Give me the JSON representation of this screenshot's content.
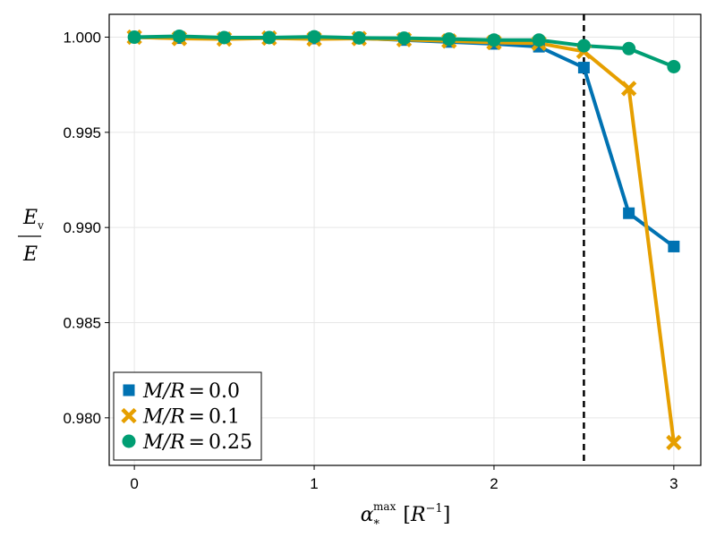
{
  "chart_data": {
    "type": "line",
    "xlabel": {
      "base": "α",
      "sup": "max",
      "sub": "*",
      "unit_open": "[",
      "unit_var": "R",
      "unit_exp": "−1",
      "unit_close": "]"
    },
    "ylabel": {
      "numerator": "E",
      "numerator_sub": "v",
      "denominator": "E"
    },
    "xlim": [
      -0.14,
      3.15
    ],
    "ylim": [
      0.9775,
      1.0012
    ],
    "x_ticks": [
      0,
      1,
      2,
      3
    ],
    "x_tick_labels": [
      "0",
      "1",
      "2",
      "3"
    ],
    "y_ticks": [
      0.98,
      0.985,
      0.99,
      0.995,
      1.0
    ],
    "y_tick_labels": [
      "0.980",
      "0.985",
      "0.990",
      "0.995",
      "1.000"
    ],
    "grid": true,
    "vline": {
      "x": 2.5,
      "style": "dashed",
      "color": "#000000"
    },
    "legend_position": "bottom-left",
    "x": [
      0,
      0.25,
      0.5,
      0.75,
      1.0,
      1.25,
      1.5,
      1.75,
      2.0,
      2.25,
      2.5,
      2.75,
      3.0
    ],
    "series": [
      {
        "name": "M/R = 0.0",
        "legend_var": "M/R",
        "legend_eq": "=",
        "legend_val": "0.0",
        "marker": "square",
        "color": "#0072b2",
        "values": [
          1.0,
          0.99995,
          0.99995,
          0.99997,
          0.99993,
          0.99995,
          0.99985,
          0.99975,
          0.99965,
          0.9995,
          0.9984,
          0.99075,
          0.989
        ]
      },
      {
        "name": "M/R = 0.1",
        "legend_var": "M/R",
        "legend_eq": "=",
        "legend_val": "0.1",
        "marker": "cross",
        "color": "#e69f00",
        "values": [
          1.0,
          0.99993,
          0.9999,
          0.99995,
          0.9999,
          0.99993,
          0.99987,
          0.9998,
          0.99972,
          0.99968,
          0.99925,
          0.9973,
          0.9787
        ]
      },
      {
        "name": "M/R = 0.25",
        "legend_var": "M/R",
        "legend_eq": "=",
        "legend_val": "0.25",
        "marker": "circle",
        "color": "#009e73",
        "values": [
          1.0,
          1.00005,
          0.99998,
          0.99998,
          1.00002,
          0.99996,
          0.99995,
          0.9999,
          0.99985,
          0.99985,
          0.99955,
          0.9994,
          0.99845
        ]
      }
    ]
  }
}
